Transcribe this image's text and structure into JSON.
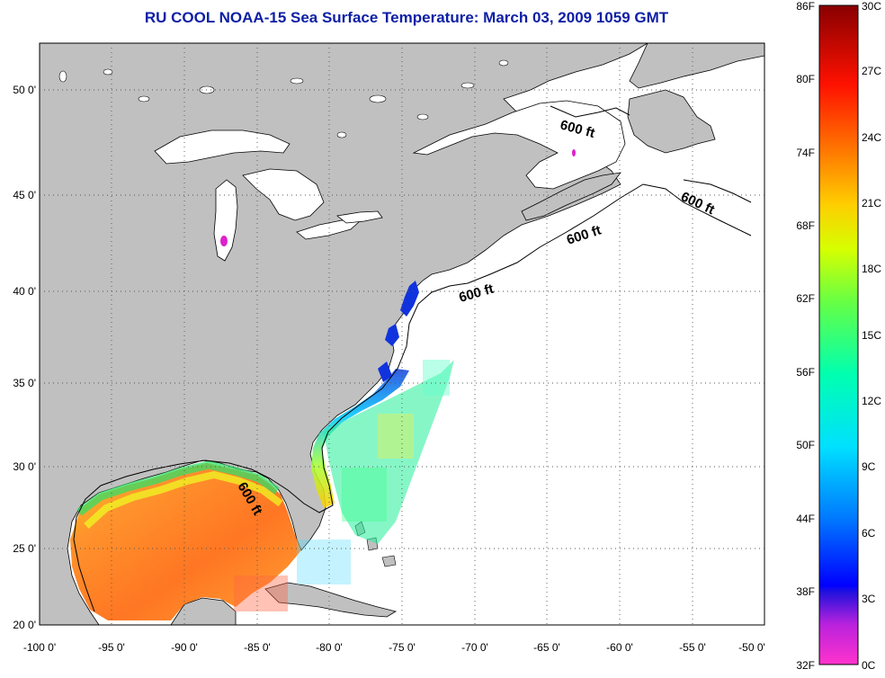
{
  "title": "RU COOL  NOAA-15  Sea Surface Temperature:  March 03, 2009 1059 GMT",
  "map": {
    "lon_labels": [
      "-100 0'",
      "-95 0'",
      "-90 0'",
      "-85 0'",
      "-80 0'",
      "-75 0'",
      "-70 0'",
      "-65 0'",
      "-60 0'",
      "-55 0'",
      "-50 0'"
    ],
    "lat_labels": [
      "50 0'",
      "45 0'",
      "40 0'",
      "35 0'",
      "30 0'",
      "25 0'",
      "20 0'"
    ],
    "contour_labels": [
      "600 ft",
      "600 ft",
      "600 ft",
      "600 ft",
      "600 ft"
    ],
    "land_color": "#c0c0c0",
    "ocean_color": "#ffffff"
  },
  "colorbar": {
    "fahrenheit_labels": [
      "86F",
      "80F",
      "74F",
      "68F",
      "62F",
      "56F",
      "50F",
      "44F",
      "38F",
      "32F"
    ],
    "celsius_labels": [
      "30C",
      "27C",
      "24C",
      "21C",
      "18C",
      "15C",
      "12C",
      "9C",
      "6C",
      "3C",
      "0C"
    ]
  }
}
